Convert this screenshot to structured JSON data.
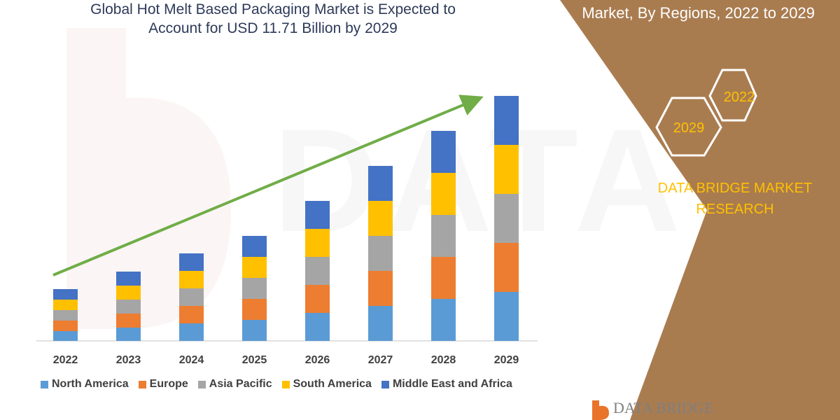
{
  "title_lines": [
    "Global Hot Melt Based Packaging Market is Expected to",
    "Account for USD 11.71 Billion by 2029"
  ],
  "right_panel": {
    "title": "Market, By Regions, 2022 to 2029",
    "hex_labels": [
      "2022",
      "2029"
    ],
    "brand_lines": [
      "DATA BRIDGE MARKET",
      "RESEARCH"
    ],
    "background_color": "#a97c50"
  },
  "footer_logo": "DATA BRIDGE",
  "chart_data": {
    "type": "bar",
    "stacked": true,
    "categories": [
      "2022",
      "2023",
      "2024",
      "2025",
      "2026",
      "2027",
      "2028",
      "2029"
    ],
    "series": [
      {
        "name": "North America",
        "color": "#5b9bd5",
        "values": [
          14,
          19,
          25,
          30,
          40,
          50,
          60,
          70
        ]
      },
      {
        "name": "Europe",
        "color": "#ed7d31",
        "values": [
          15,
          20,
          25,
          30,
          40,
          50,
          60,
          70
        ]
      },
      {
        "name": "Asia Pacific",
        "color": "#a5a5a5",
        "values": [
          15,
          20,
          25,
          30,
          40,
          50,
          60,
          70
        ]
      },
      {
        "name": "South America",
        "color": "#ffc000",
        "values": [
          15,
          20,
          25,
          30,
          40,
          50,
          60,
          70
        ]
      },
      {
        "name": "Middle East and Africa",
        "color": "#4472c4",
        "values": [
          15,
          20,
          25,
          30,
          40,
          50,
          60,
          70
        ]
      }
    ],
    "trend_arrow_color": "#70ad47",
    "legend_position": "bottom"
  }
}
